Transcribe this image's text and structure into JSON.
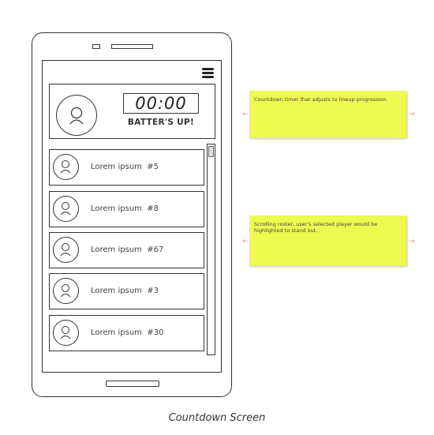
{
  "timer": {
    "value": "00:00",
    "status": "BATTER'S UP!"
  },
  "roster": {
    "items": [
      {
        "label": "Lorem ipsum  #5"
      },
      {
        "label": "Lorem ipsum  #8"
      },
      {
        "label": "Lorem ipsum  #67"
      },
      {
        "label": "Lorem ipsum  #3"
      },
      {
        "label": "Lorem ipsum  #30"
      }
    ]
  },
  "notes": [
    {
      "text": "Countdown timer that adjusts to lineup progression."
    },
    {
      "text": "Scrolling roster, user's selected player would be highlighted to stand out."
    }
  ],
  "caption": "Countdown Screen",
  "icons": [
    "menu-icon",
    "user-icon"
  ],
  "colors": {
    "note_bg": "#eefa4f",
    "arrow": "#f08a8a",
    "ink": "#333333"
  }
}
